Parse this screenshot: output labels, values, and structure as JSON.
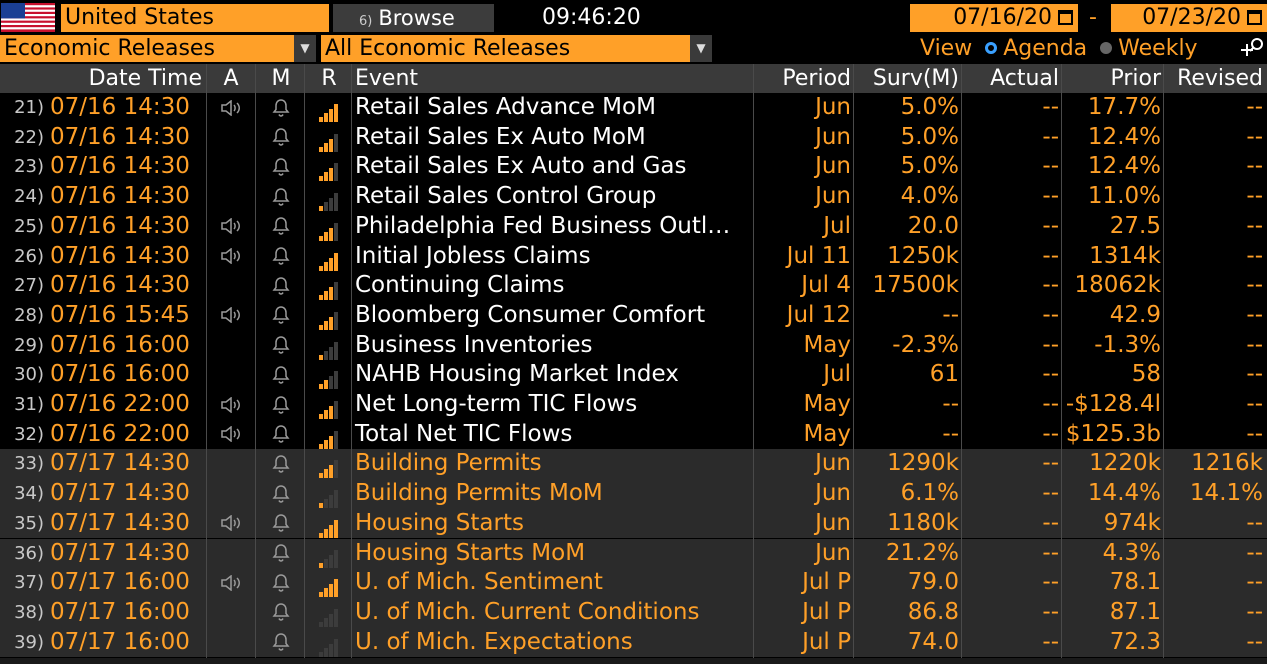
{
  "header": {
    "country": "United States",
    "browse_num": "6)",
    "browse_label": "Browse",
    "time": "09:46:20",
    "date_from": "07/16/20",
    "date_sep": "-",
    "date_to": "07/23/20",
    "filter_category": "Economic Releases",
    "filter_sub": "All Economic Releases",
    "view_label": "View",
    "view_agenda": "Agenda",
    "view_weekly": "Weekly",
    "view_selected": "Agenda"
  },
  "colors": {
    "accent": "#ffa028",
    "header_bg": "#3a3a3a",
    "row_dark": "#000000",
    "row_light": "#2b2b2b",
    "radio_on": "#3aa0ff"
  },
  "columns": [
    "Date Time",
    "A",
    "M",
    "R",
    "Event",
    "Period",
    "Surv(M)",
    "Actual",
    "Prior",
    "Revised"
  ],
  "rows": [
    {
      "idx": "21)",
      "datetime": "07/16 14:30",
      "alert": true,
      "relevance": 4,
      "event": "Retail Sales Advance MoM",
      "period": "Jun",
      "surv": "5.0%",
      "actual": "--",
      "prior": "17.7%",
      "revised": "--",
      "day": 1
    },
    {
      "idx": "22)",
      "datetime": "07/16 14:30",
      "alert": false,
      "relevance": 3,
      "event": "Retail Sales Ex Auto MoM",
      "period": "Jun",
      "surv": "5.0%",
      "actual": "--",
      "prior": "12.4%",
      "revised": "--",
      "day": 1
    },
    {
      "idx": "23)",
      "datetime": "07/16 14:30",
      "alert": false,
      "relevance": 3,
      "event": "Retail Sales Ex Auto and Gas",
      "period": "Jun",
      "surv": "5.0%",
      "actual": "--",
      "prior": "12.4%",
      "revised": "--",
      "day": 1
    },
    {
      "idx": "24)",
      "datetime": "07/16 14:30",
      "alert": false,
      "relevance": 1,
      "event": "Retail Sales Control Group",
      "period": "Jun",
      "surv": "4.0%",
      "actual": "--",
      "prior": "11.0%",
      "revised": "--",
      "day": 1
    },
    {
      "idx": "25)",
      "datetime": "07/16 14:30",
      "alert": true,
      "relevance": 3,
      "event": "Philadelphia Fed Business Outl…",
      "period": "Jul",
      "surv": "20.0",
      "actual": "--",
      "prior": "27.5",
      "revised": "--",
      "day": 1
    },
    {
      "idx": "26)",
      "datetime": "07/16 14:30",
      "alert": true,
      "relevance": 4,
      "event": "Initial Jobless Claims",
      "period": "Jul 11",
      "surv": "1250k",
      "actual": "--",
      "prior": "1314k",
      "revised": "--",
      "day": 1
    },
    {
      "idx": "27)",
      "datetime": "07/16 14:30",
      "alert": false,
      "relevance": 3,
      "event": "Continuing Claims",
      "period": "Jul 4",
      "surv": "17500k",
      "actual": "--",
      "prior": "18062k",
      "revised": "--",
      "day": 1
    },
    {
      "idx": "28)",
      "datetime": "07/16 15:45",
      "alert": true,
      "relevance": 3,
      "event": "Bloomberg Consumer Comfort",
      "period": "Jul 12",
      "surv": "--",
      "actual": "--",
      "prior": "42.9",
      "revised": "--",
      "day": 1
    },
    {
      "idx": "29)",
      "datetime": "07/16 16:00",
      "alert": false,
      "relevance": 1,
      "event": "Business Inventories",
      "period": "May",
      "surv": "-2.3%",
      "actual": "--",
      "prior": "-1.3%",
      "revised": "--",
      "day": 1
    },
    {
      "idx": "30)",
      "datetime": "07/16 16:00",
      "alert": false,
      "relevance": 2,
      "event": "NAHB Housing Market Index",
      "period": "Jul",
      "surv": "61",
      "actual": "--",
      "prior": "58",
      "revised": "--",
      "day": 1
    },
    {
      "idx": "31)",
      "datetime": "07/16 22:00",
      "alert": true,
      "relevance": 3,
      "event": "Net Long-term TIC Flows",
      "period": "May",
      "surv": "--",
      "actual": "--",
      "prior": "-$128.4l",
      "revised": "--",
      "day": 1
    },
    {
      "idx": "32)",
      "datetime": "07/16 22:00",
      "alert": true,
      "relevance": 3,
      "event": "Total Net TIC Flows",
      "period": "May",
      "surv": "--",
      "actual": "--",
      "prior": "$125.3b",
      "revised": "--",
      "day": 1
    },
    {
      "idx": "33)",
      "datetime": "07/17 14:30",
      "alert": false,
      "relevance": 3,
      "event": "Building Permits",
      "period": "Jun",
      "surv": "1290k",
      "actual": "--",
      "prior": "1220k",
      "revised": "1216k",
      "day": 2
    },
    {
      "idx": "34)",
      "datetime": "07/17 14:30",
      "alert": false,
      "relevance": 1,
      "event": "Building Permits MoM",
      "period": "Jun",
      "surv": "6.1%",
      "actual": "--",
      "prior": "14.4%",
      "revised": "14.1%",
      "day": 2
    },
    {
      "idx": "35)",
      "datetime": "07/17 14:30",
      "alert": true,
      "relevance": 4,
      "event": "Housing Starts",
      "period": "Jun",
      "surv": "1180k",
      "actual": "--",
      "prior": "974k",
      "revised": "--",
      "day": 2
    },
    {
      "idx": "36)",
      "datetime": "07/17 14:30",
      "alert": false,
      "relevance": 1,
      "event": "Housing Starts MoM",
      "period": "Jun",
      "surv": "21.2%",
      "actual": "--",
      "prior": "4.3%",
      "revised": "--",
      "day": 2
    },
    {
      "idx": "37)",
      "datetime": "07/17 16:00",
      "alert": true,
      "relevance": 4,
      "event": "U. of Mich. Sentiment",
      "period": "Jul P",
      "surv": "79.0",
      "actual": "--",
      "prior": "78.1",
      "revised": "--",
      "day": 2
    },
    {
      "idx": "38)",
      "datetime": "07/17 16:00",
      "alert": false,
      "relevance": 0,
      "event": "U. of Mich. Current Conditions",
      "period": "Jul P",
      "surv": "86.8",
      "actual": "--",
      "prior": "87.1",
      "revised": "--",
      "day": 2
    },
    {
      "idx": "39)",
      "datetime": "07/17 16:00",
      "alert": false,
      "relevance": 0,
      "event": "U. of Mich. Expectations",
      "period": "Jul P",
      "surv": "74.0",
      "actual": "--",
      "prior": "72.3",
      "revised": "--",
      "day": 2
    }
  ]
}
